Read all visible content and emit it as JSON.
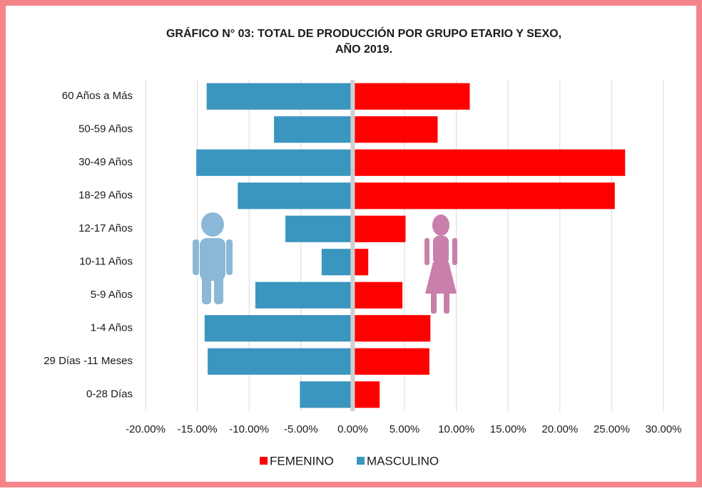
{
  "chart_data": {
    "type": "bar",
    "orientation": "horizontal",
    "title": [
      "GRÁFICO N° 03: TOTAL DE PRODUCCIÓN POR GRUPO ETARIO Y SEXO,",
      "AÑO 2019."
    ],
    "categories": [
      "60 Años a Más",
      "50-59 Años",
      "30-49 Años",
      "18-29 Años",
      "12-17 Años",
      "10-11 Años",
      "5-9 Años",
      "1-4 Años",
      "29 Días -11 Meses",
      "0-28 Días"
    ],
    "series": [
      {
        "name": "FEMENINO",
        "color": "#ff0000",
        "values": [
          11.3,
          8.2,
          26.3,
          25.3,
          5.1,
          1.5,
          4.8,
          7.5,
          7.4,
          2.6
        ]
      },
      {
        "name": "MASCULINO",
        "color": "#3a96bf",
        "values": [
          -14.1,
          -7.6,
          -15.1,
          -11.1,
          -6.5,
          -3.0,
          -9.4,
          -14.3,
          -14.0,
          -5.1
        ]
      }
    ],
    "xlim": [
      -20,
      30
    ],
    "xticks": [
      {
        "value": -20,
        "label": "-20.00%"
      },
      {
        "value": -15,
        "label": "-15.00%"
      },
      {
        "value": -10,
        "label": "-10.00%"
      },
      {
        "value": -5,
        "label": "-5.00%"
      },
      {
        "value": 0,
        "label": "0.00%"
      },
      {
        "value": 5,
        "label": "5.00%"
      },
      {
        "value": 10,
        "label": "10.00%"
      },
      {
        "value": 15,
        "label": "15.00%"
      },
      {
        "value": 20,
        "label": "20.00%"
      },
      {
        "value": 25,
        "label": "25.00%"
      },
      {
        "value": 30,
        "label": "30.00%"
      }
    ],
    "grid": true,
    "legend": "bottom"
  }
}
